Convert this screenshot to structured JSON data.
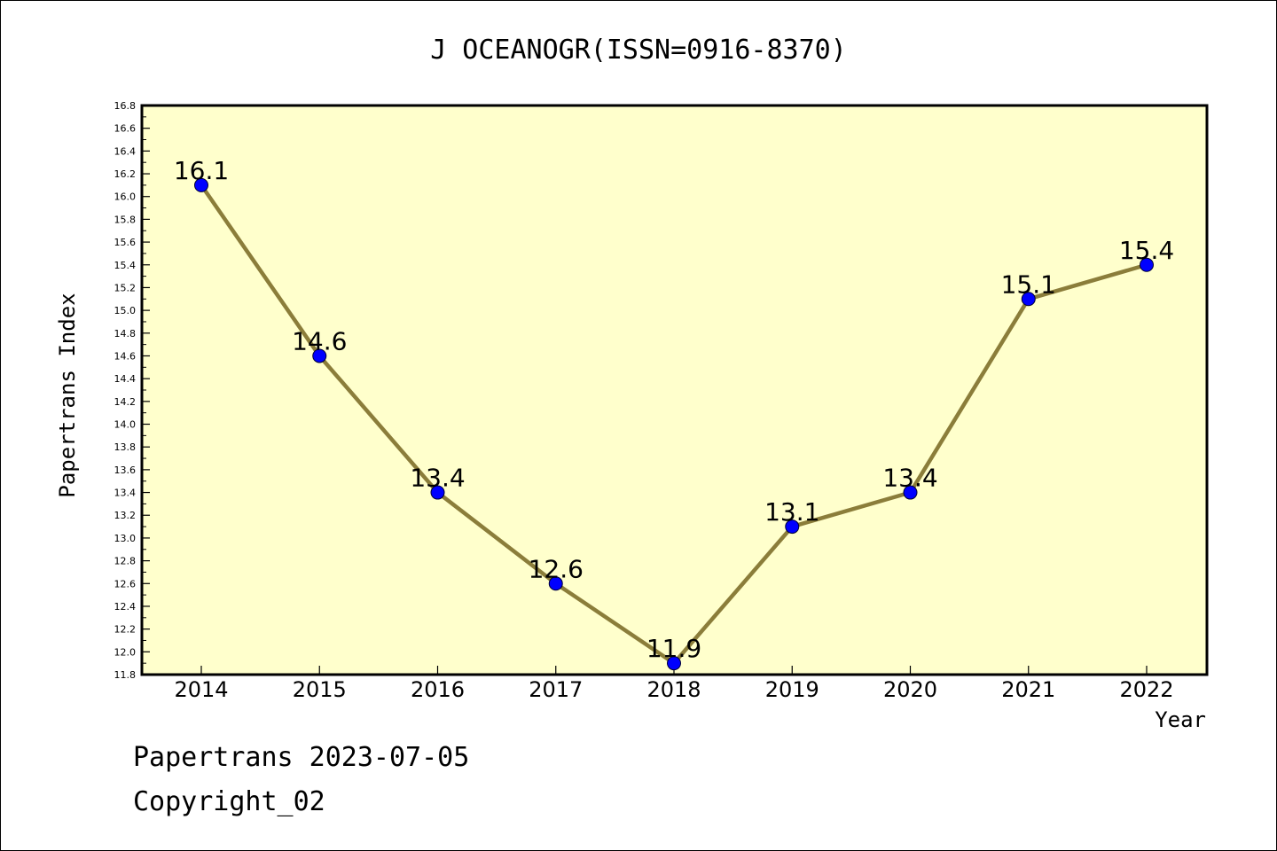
{
  "chart_data": {
    "type": "line",
    "title": "J OCEANOGR(ISSN=0916-8370)",
    "xlabel": "Year",
    "ylabel": "Papertrans Index",
    "categories": [
      "2014",
      "2015",
      "2016",
      "2017",
      "2018",
      "2019",
      "2020",
      "2021",
      "2022"
    ],
    "series": [
      {
        "values": [
          16.1,
          14.6,
          13.4,
          12.6,
          11.9,
          13.1,
          13.4,
          15.1,
          15.4
        ]
      }
    ],
    "data_labels": [
      "16.1",
      "14.6",
      "13.4",
      "12.6",
      "11.9",
      "13.1",
      "13.4",
      "15.1",
      "15.4"
    ],
    "ylim": [
      11.8,
      16.8
    ],
    "y_ticks": [
      "11.8",
      "12.0",
      "12.2",
      "12.4",
      "12.6",
      "12.8",
      "13.0",
      "13.2",
      "13.4",
      "13.6",
      "13.8",
      "14.0",
      "14.2",
      "14.4",
      "14.6",
      "14.8",
      "15.0",
      "15.2",
      "15.4",
      "15.6",
      "15.8",
      "16.0",
      "16.2",
      "16.4",
      "16.6",
      "16.8"
    ],
    "grid": false,
    "colors": {
      "plot_background": "#ffffcc",
      "line": "#8b7d3a",
      "marker": "#0000ff"
    }
  },
  "footer": {
    "line1": "Papertrans 2023-07-05",
    "line2": "Copyright_02"
  }
}
